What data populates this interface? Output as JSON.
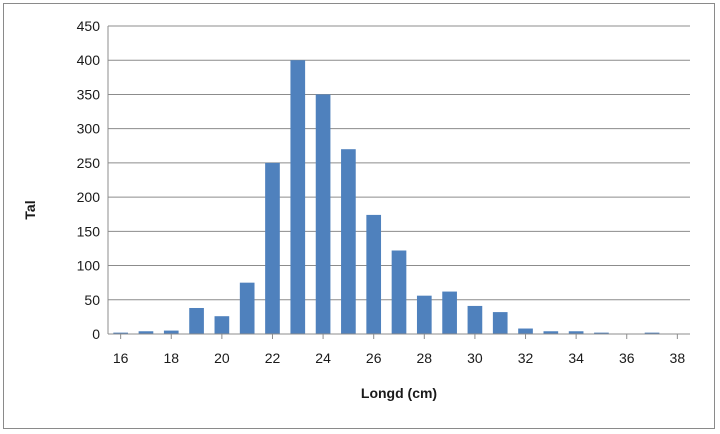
{
  "chart_data": {
    "type": "bar",
    "title": "",
    "xlabel": "Longd (cm)",
    "ylabel": "Tal",
    "ylim": [
      0,
      450
    ],
    "ytick_step": 50,
    "yticks": [
      "0",
      "50",
      "100",
      "150",
      "200",
      "250",
      "300",
      "350",
      "400",
      "450"
    ],
    "xticks": [
      "16",
      "18",
      "20",
      "22",
      "24",
      "26",
      "28",
      "30",
      "32",
      "34",
      "36",
      "38"
    ],
    "categories": [
      16,
      17,
      18,
      19,
      20,
      21,
      22,
      23,
      24,
      25,
      26,
      27,
      28,
      29,
      30,
      31,
      32,
      33,
      34,
      35,
      36,
      37
    ],
    "values": [
      2,
      4,
      5,
      38,
      26,
      75,
      250,
      400,
      350,
      270,
      174,
      122,
      56,
      62,
      41,
      32,
      8,
      4,
      4,
      2,
      0,
      2
    ],
    "grid": true,
    "legend": "none",
    "bar_color": "#4f81bd"
  }
}
